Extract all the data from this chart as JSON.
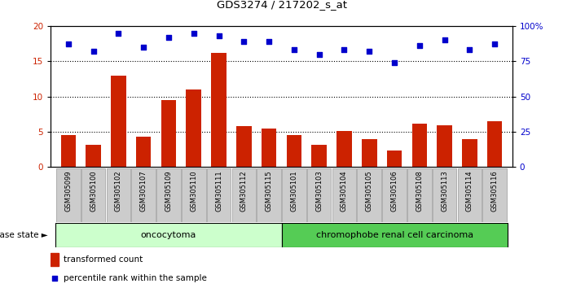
{
  "title": "GDS3274 / 217202_s_at",
  "samples": [
    "GSM305099",
    "GSM305100",
    "GSM305102",
    "GSM305107",
    "GSM305109",
    "GSM305110",
    "GSM305111",
    "GSM305112",
    "GSM305115",
    "GSM305101",
    "GSM305103",
    "GSM305104",
    "GSM305105",
    "GSM305106",
    "GSM305108",
    "GSM305113",
    "GSM305114",
    "GSM305116"
  ],
  "transformed_count": [
    4.5,
    3.1,
    13.0,
    4.3,
    9.5,
    11.0,
    16.2,
    5.8,
    5.5,
    4.5,
    3.2,
    5.1,
    3.9,
    2.3,
    6.1,
    5.9,
    4.0,
    6.5
  ],
  "percentile_rank": [
    87,
    82,
    95,
    85,
    92,
    95,
    93,
    89,
    89,
    83,
    80,
    83,
    82,
    74,
    86,
    90,
    83,
    87
  ],
  "oncocytoma_count": 9,
  "chromophobe_count": 9,
  "oncocytoma_label": "oncocytoma",
  "chromophobe_label": "chromophobe renal cell carcinoma",
  "disease_state_label": "disease state",
  "legend_bar_label": "transformed count",
  "legend_dot_label": "percentile rank within the sample",
  "bar_color": "#cc2200",
  "dot_color": "#0000cc",
  "oncocytoma_bg": "#ccffcc",
  "chromophobe_bg": "#55cc55",
  "tick_label_bg": "#cccccc",
  "ylim_left": [
    0,
    20
  ],
  "ylim_right": [
    0,
    100
  ],
  "yticks_left": [
    0,
    5,
    10,
    15,
    20
  ],
  "yticks_right": [
    0,
    25,
    50,
    75,
    100
  ],
  "ytick_labels_right": [
    "0",
    "25",
    "50",
    "75",
    "100%"
  ],
  "grid_values": [
    5,
    10,
    15
  ],
  "bar_width": 0.6
}
